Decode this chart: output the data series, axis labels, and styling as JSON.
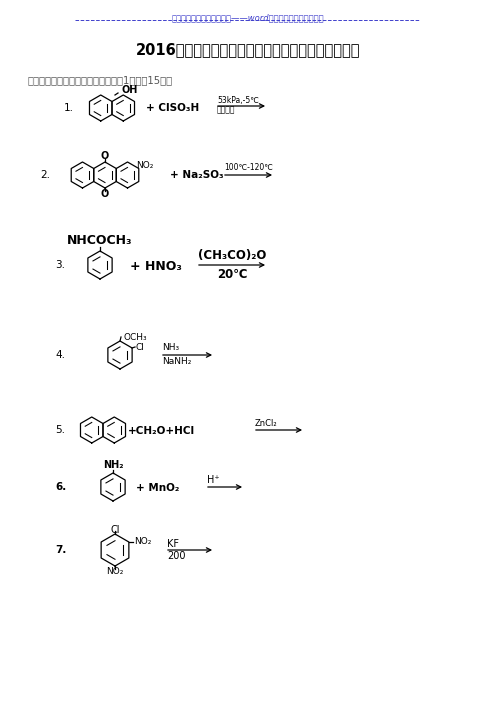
{
  "bg_color": "#ffffff",
  "text_color": "#000000",
  "link_color": "#4040cc",
  "title_link": "》》》》》》历年考试真题——word版欢迎下载《《《《《《",
  "title_main": "2016年山东青岛大学精细有机合成单元反应考研真题",
  "section_header": "一、写出下列反应的主要产物（每空1分，共15分）",
  "q1_reagent": "+ ClSO₃H",
  "q1_cond1": "53kPa,-5℃",
  "q1_cond2": "硝基乙苯",
  "q2_reagent": "+ Na₂SO₃",
  "q2_cond": "100℃-120℃",
  "q3_sub": "NHCOCH₃",
  "q3_reagent": "+ HNO₃",
  "q3_cond1": "(CH₃CO)₂O",
  "q3_cond2": "20℃",
  "q4_sub1": "OCH₃",
  "q4_sub2": "Cl",
  "q4_cond1": "NH₃",
  "q4_cond2": "NaNH₂",
  "q5_reagent": "+CH₂O+HCl",
  "q5_cond": "ZnCl₂",
  "q6_sub": "NH₂",
  "q6_reagent": "+ MnO₂",
  "q6_cond": "H⁺",
  "q7_sub1": "Cl",
  "q7_sub2": "NO₂",
  "q7_sub3": "NO₂",
  "q7_cond1": "KF",
  "q7_cond2": "200"
}
